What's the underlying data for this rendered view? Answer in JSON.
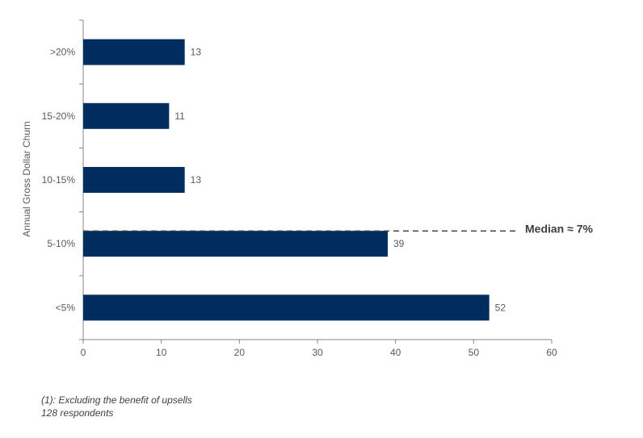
{
  "chart_data": {
    "type": "bar",
    "orientation": "horizontal",
    "categories": [
      ">20%",
      "15-20%",
      "10-15%",
      "5-10%",
      "<5%"
    ],
    "values": [
      13,
      11,
      13,
      39,
      52
    ],
    "ylabel": "Annual Gross Dollar Churn",
    "xlabel": "",
    "xlim": [
      0,
      60
    ],
    "xticks": [
      "0",
      "10",
      "20",
      "30",
      "40",
      "50",
      "60"
    ],
    "grid": false,
    "bar_color": "#002D5E",
    "reference_line": {
      "label": "Median ≈ 7%",
      "category_position": 3.3,
      "style": "dashed",
      "color": "#404040"
    }
  },
  "footnote": {
    "line1": "(1): Excluding the benefit of upsells",
    "line2": "128 respondents"
  }
}
